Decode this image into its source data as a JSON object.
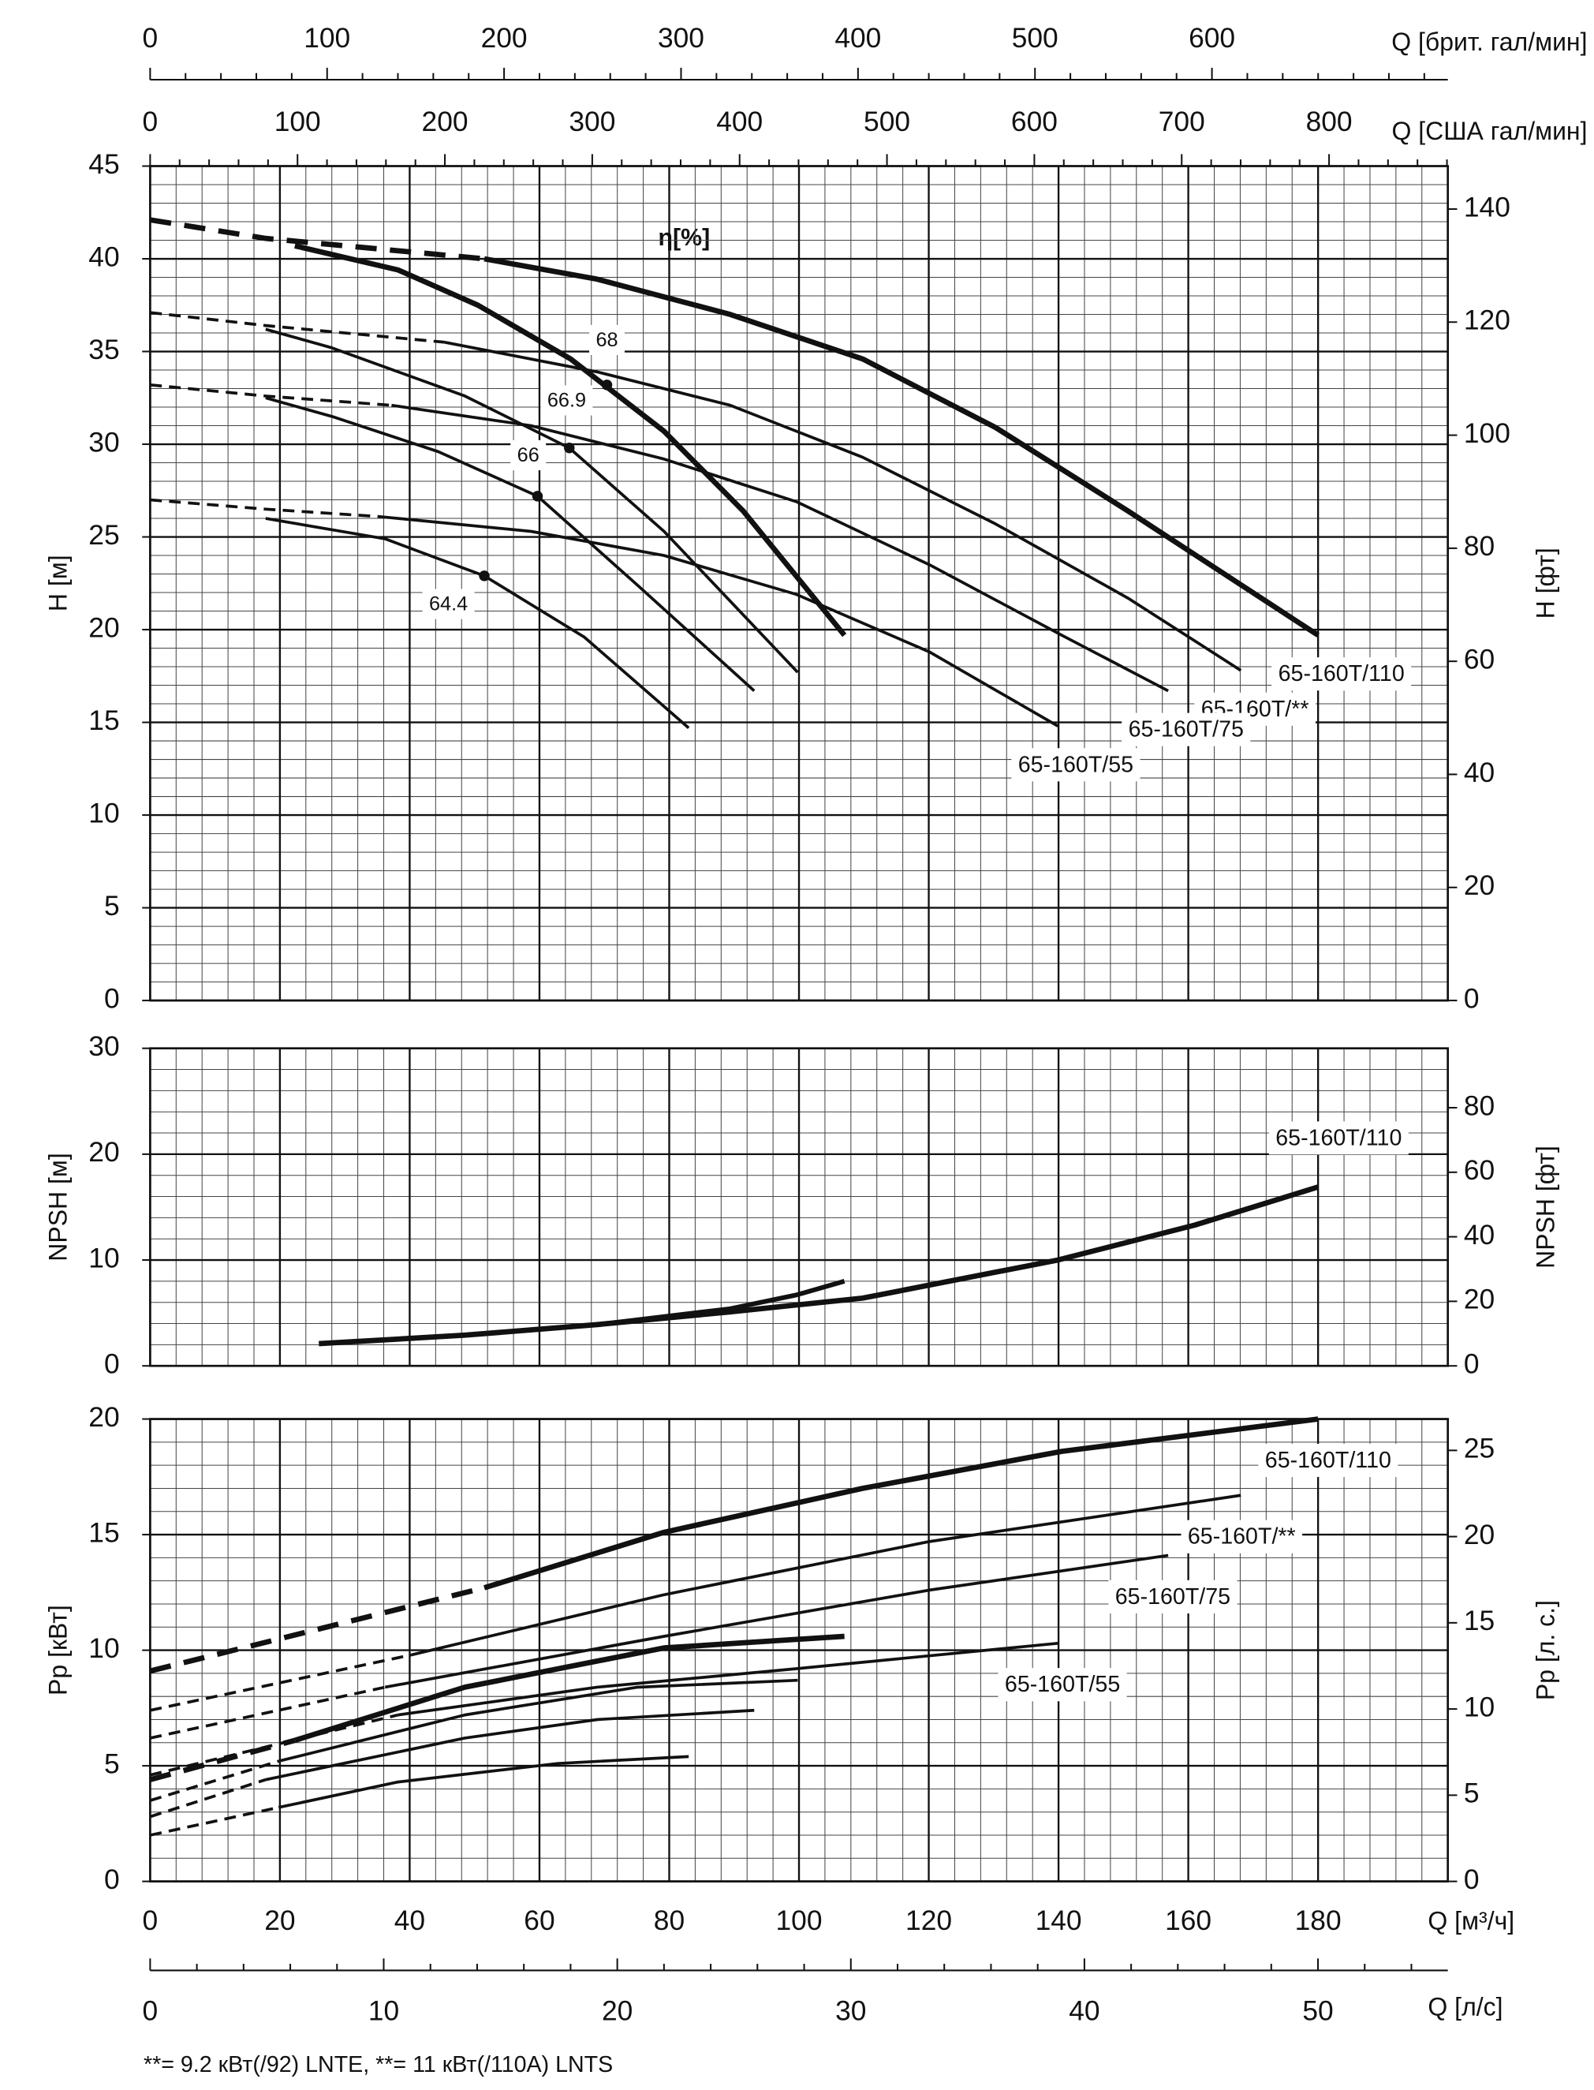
{
  "chart_data": [
    {
      "type": "line",
      "ylabel": "H [м]",
      "y2label": "H [фт]",
      "color": "#111111",
      "grid": true,
      "xlim": [
        0,
        200
      ],
      "xticks": [
        0,
        20,
        40,
        60,
        80,
        100,
        120,
        140,
        160,
        180
      ],
      "ylim": [
        0,
        45
      ],
      "yticks": [
        0,
        5,
        10,
        15,
        20,
        25,
        30,
        35,
        40,
        45
      ],
      "y2lim": [
        0,
        147.6
      ],
      "y2ticks": [
        0,
        20,
        40,
        60,
        80,
        100,
        120,
        140
      ],
      "minor_grid": {
        "x": 4,
        "y": 1
      },
      "top_axes": [
        {
          "label": "Q [брит. гал/мин]",
          "xlim": [
            0,
            733.3
          ],
          "xticks": [
            0,
            100,
            200,
            300,
            400,
            500,
            600
          ],
          "minor": 20
        },
        {
          "label": "Q [США гал/мин]",
          "xlim": [
            0,
            880.6
          ],
          "xticks": [
            0,
            100,
            200,
            300,
            400,
            500,
            600,
            700,
            800
          ],
          "minor": 20
        }
      ],
      "series": [
        {
          "name": "65-160T/110",
          "line_width": 4,
          "dashed_to": 51.5,
          "x": [
            0,
            17.8,
            51.5,
            68.9,
            89.4,
            109.8,
            130.3,
            150.7,
            180
          ],
          "values": [
            42.1,
            41.1,
            40.0,
            38.9,
            37.0,
            34.6,
            30.9,
            26.4,
            19.7
          ]
        },
        {
          "name": "65-160T/**",
          "line_width": 2.2,
          "dashed_to": 45.4,
          "x": [
            0,
            17.8,
            45.4,
            68.9,
            89.4,
            109.8,
            130.3,
            150.7,
            168.1
          ],
          "values": [
            37.1,
            36.4,
            35.5,
            33.9,
            32.1,
            29.3,
            25.7,
            21.7,
            17.8
          ]
        },
        {
          "name": "65-160T/75",
          "line_width": 2.2,
          "dashed_to": 37.2,
          "x": [
            0,
            17.8,
            37.2,
            58.7,
            79.2,
            99.6,
            120.1,
            140.5,
            156.9
          ],
          "values": [
            33.2,
            32.6,
            32.1,
            31.0,
            29.2,
            26.9,
            23.5,
            19.7,
            16.7
          ]
        },
        {
          "name": "65-160T/55",
          "line_width": 2.2,
          "dashed_to": 35.2,
          "x": [
            0,
            17.8,
            35.2,
            58.7,
            79.2,
            99.6,
            120.1,
            139.9
          ],
          "values": [
            27.0,
            26.5,
            26.1,
            25.3,
            24.0,
            21.9,
            18.8,
            14.8
          ]
        },
        {
          "line_width": 4,
          "x": [
            22.3,
            38.2,
            50.5,
            64.8,
            79.2,
            91.4,
            107.0
          ],
          "values": [
            40.7,
            39.4,
            37.5,
            34.6,
            30.7,
            26.4,
            19.7
          ]
        },
        {
          "line_width": 2.2,
          "x": [
            17.8,
            28.0,
            48.5,
            64.6,
            79.2,
            99.8
          ],
          "values": [
            36.2,
            35.2,
            32.6,
            29.8,
            25.3,
            17.7
          ]
        },
        {
          "line_width": 2.2,
          "x": [
            17.8,
            28.0,
            44.4,
            59.7,
            75.1,
            93.1
          ],
          "values": [
            32.5,
            31.5,
            29.6,
            27.2,
            22.4,
            16.7
          ]
        },
        {
          "line_width": 2.2,
          "x": [
            17.8,
            36.2,
            51.5,
            66.9,
            83.0
          ],
          "values": [
            26.0,
            24.9,
            22.9,
            19.6,
            14.7
          ]
        }
      ],
      "efficiency": {
        "label": "η[%]",
        "x": [
          70.4,
          64.6,
          59.7,
          51.5
        ],
        "h": [
          33.2,
          29.8,
          27.2,
          22.9
        ],
        "values": [
          68,
          66.9,
          66,
          64.4
        ]
      }
    },
    {
      "type": "line",
      "ylabel": "NPSH [м]",
      "y2label": "NPSH [фт]",
      "color": "#111111",
      "grid": true,
      "xlim": [
        0,
        200
      ],
      "xticks": [
        0,
        20,
        40,
        60,
        80,
        100,
        120,
        140,
        160,
        180
      ],
      "ylim": [
        0,
        30
      ],
      "yticks": [
        0,
        10,
        20,
        30
      ],
      "y2lim": [
        0,
        98.4
      ],
      "y2ticks": [
        0,
        20,
        40,
        60,
        80
      ],
      "minor_grid": {
        "x": 4,
        "y": 2
      },
      "series": [
        {
          "name": "65-160T/110",
          "line_width": 4,
          "x": [
            26.0,
            48.5,
            68.9,
            89.4,
            109.8,
            139.9,
            161.0,
            180
          ],
          "values": [
            2.1,
            2.9,
            3.9,
            5.1,
            6.4,
            10.0,
            13.3,
            16.9
          ]
        },
        {
          "line_width": 3.5,
          "x": [
            58.7,
            68.9,
            89.4,
            99.6,
            107.0
          ],
          "values": [
            3.4,
            3.9,
            5.4,
            6.7,
            8.0
          ]
        }
      ]
    },
    {
      "type": "line",
      "ylabel": "Pp [кВт]",
      "y2label": "Pp [л. с.]",
      "xlabel": "Q [м³/ч]",
      "color": "#111111",
      "grid": true,
      "xlim": [
        0,
        200
      ],
      "xticks": [
        0,
        20,
        40,
        60,
        80,
        100,
        120,
        140,
        160,
        180
      ],
      "ylim": [
        0,
        20
      ],
      "yticks": [
        0,
        5,
        10,
        15,
        20
      ],
      "y2lim": [
        0,
        26.82
      ],
      "y2ticks": [
        0,
        5,
        10,
        15,
        20,
        25
      ],
      "minor_grid": {
        "x": 4,
        "y": 1
      },
      "bottom_axes": [
        {
          "label": "Q [л/с]",
          "xlim": [
            0,
            55.56
          ],
          "xticks": [
            0,
            10,
            20,
            30,
            40,
            50
          ],
          "minor": 2
        }
      ],
      "series": [
        {
          "name": "65-160T/110",
          "line_width": 4,
          "dashed_to": 51.5,
          "x": [
            0,
            51.5,
            79.2,
            109.8,
            140.5,
            180
          ],
          "values": [
            9.1,
            12.7,
            15.1,
            17.0,
            18.6,
            20.0
          ]
        },
        {
          "name": "65-160T/**",
          "line_width": 2.2,
          "dashed_to": 40.3,
          "x": [
            0,
            40.3,
            79.2,
            120.1,
            168.1
          ],
          "values": [
            7.4,
            9.8,
            12.4,
            14.7,
            16.7
          ]
        },
        {
          "name": "65-160T/75",
          "line_width": 2.2,
          "dashed_to": 36.2,
          "x": [
            0,
            36.2,
            79.2,
            120.1,
            156.9
          ],
          "values": [
            6.2,
            8.4,
            10.6,
            12.6,
            14.1
          ]
        },
        {
          "name": "65-160T/55",
          "line_width": 2.2,
          "dashed_to": 38.2,
          "x": [
            0,
            38.2,
            68.9,
            99.6,
            139.9
          ],
          "values": [
            4.6,
            7.2,
            8.4,
            9.2,
            10.3
          ]
        },
        {
          "line_width": 4,
          "dashed_to": 22.3,
          "x": [
            0,
            22.3,
            48.5,
            79.2,
            107.0
          ],
          "values": [
            4.4,
            6.1,
            8.4,
            10.1,
            10.6
          ]
        },
        {
          "line_width": 2.2,
          "dashed_to": 19.8,
          "x": [
            0,
            19.8,
            48.5,
            75.1,
            99.8
          ],
          "values": [
            3.5,
            5.2,
            7.2,
            8.4,
            8.7
          ]
        },
        {
          "line_width": 2.2,
          "dashed_to": 17.8,
          "x": [
            0,
            17.8,
            48.5,
            68.9,
            93.1
          ],
          "values": [
            2.8,
            4.4,
            6.2,
            7.0,
            7.4
          ]
        },
        {
          "line_width": 2.2,
          "dashed_to": 19.8,
          "x": [
            0,
            19.8,
            38.2,
            62.8,
            83.0
          ],
          "values": [
            2.0,
            3.2,
            4.3,
            5.1,
            5.4
          ]
        }
      ]
    }
  ],
  "footnote": "**= 9.2  кВт(/92) LNTE,  **= 11  кВт(/110A) LNTS"
}
